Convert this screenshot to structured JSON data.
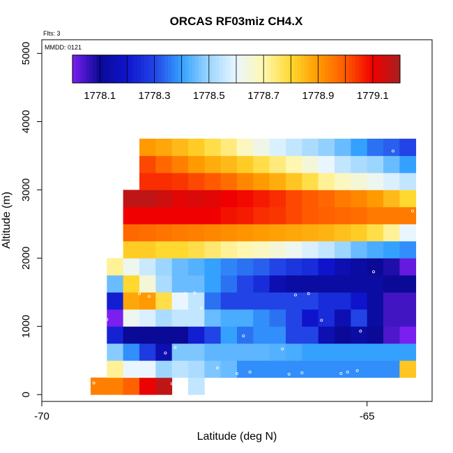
{
  "chart_data": {
    "type": "heatmap",
    "title": "ORCAS RF03miz CH4.X",
    "annotations": {
      "flights": "Flts: 3",
      "date": "MMDD: 0121"
    },
    "xlabel": "Latitude (deg N)",
    "ylabel": "Altitude (m)",
    "xlim": [
      -70,
      -64
    ],
    "ylim": [
      -100,
      5200
    ],
    "x_ticks": [
      -70,
      -65
    ],
    "y_ticks": [
      0,
      1000,
      2000,
      3000,
      4000,
      5000
    ],
    "colorbar": {
      "range": [
        1778.0,
        1779.2
      ],
      "tick_values": [
        1778.1,
        1778.3,
        1778.5,
        1778.7,
        1778.9,
        1779.1
      ],
      "tick_labels": [
        "1778.1",
        "1778.3",
        "1778.5",
        "1778.7",
        "1778.9",
        "1779.1"
      ],
      "palette": [
        "#7a1ff0",
        "#0a0a96",
        "#0f14cc",
        "#2244e6",
        "#35a1ff",
        "#9cd6ff",
        "#e9f6ff",
        "#fff7b0",
        "#ffd830",
        "#ff9a00",
        "#ff5a00",
        "#f00000",
        "#a82020"
      ]
    },
    "cell_lat_width": 0.25,
    "cell_alt_height": 250,
    "rows": [
      {
        "alt_bottom": 0,
        "lat_start": -69.25,
        "values": [
          1778.94,
          1778.94,
          1778.99,
          1779.11,
          1779.17,
          null,
          1778.55
        ]
      },
      {
        "alt_bottom": 250,
        "lat_start": -69.0,
        "values": [
          1778.72,
          1778.6,
          1778.6,
          1778.5,
          1778.54,
          1778.52,
          1778.47,
          1778.45,
          1778.38,
          1778.38,
          1778.38,
          1778.38,
          1778.38,
          1778.38,
          1778.38,
          1778.38,
          1778.38,
          1778.38,
          1778.83
        ]
      },
      {
        "alt_bottom": 500,
        "lat_start": -69.0,
        "values": [
          1778.48,
          1778.38,
          1778.28,
          1778.15,
          1778.47,
          1778.47,
          1778.44,
          1778.44,
          1778.44,
          1778.44,
          1778.43,
          1778.42,
          1778.4,
          1778.4,
          1778.4,
          1778.4,
          1778.4,
          1778.4,
          1778.4
        ]
      },
      {
        "alt_bottom": 750,
        "lat_start": -69.0,
        "values": [
          1778.23,
          1778.1,
          1778.1,
          1778.1,
          1778.1,
          1778.22,
          1778.3,
          1778.4,
          1778.35,
          1778.38,
          1778.38,
          1778.3,
          1778.3,
          1778.15,
          1778.1,
          1778.12,
          1778.1,
          1778.04,
          1778.0
        ]
      },
      {
        "alt_bottom": 1000,
        "lat_start": -69.0,
        "values": [
          1778.0,
          1778.62,
          1778.58,
          1778.52,
          1778.55,
          1778.55,
          1778.45,
          1778.42,
          1778.42,
          1778.38,
          1778.35,
          1778.3,
          1778.2,
          1778.25,
          1778.15,
          1778.3,
          1778.12,
          1778.05,
          1778.05
        ]
      },
      {
        "alt_bottom": 1250,
        "lat_start": -69.0,
        "values": [
          1778.22,
          1778.88,
          1778.9,
          1778.78,
          1778.6,
          1778.55,
          1778.35,
          1778.3,
          1778.3,
          1778.3,
          1778.3,
          1778.3,
          1778.3,
          1778.25,
          1778.25,
          1778.2,
          1778.12,
          1778.05,
          1778.05
        ]
      },
      {
        "alt_bottom": 1500,
        "lat_start": -69.0,
        "values": [
          1778.45,
          1778.8,
          1778.65,
          1778.52,
          1778.45,
          1778.45,
          1778.4,
          1778.35,
          1778.3,
          1778.25,
          1778.15,
          1778.12,
          1778.12,
          1778.12,
          1778.12,
          1778.12,
          1778.12,
          1778.1,
          1778.1
        ]
      },
      {
        "alt_bottom": 1750,
        "lat_start": -69.0,
        "values": [
          1778.72,
          1778.62,
          1778.56,
          1778.5,
          1778.45,
          1778.43,
          1778.4,
          1778.37,
          1778.35,
          1778.33,
          1778.3,
          1778.27,
          1778.25,
          1778.2,
          1778.15,
          1778.12,
          1778.1,
          1778.08,
          1778.02
        ]
      },
      {
        "alt_bottom": 2000,
        "lat_start": -68.75,
        "values": [
          1778.82,
          1778.82,
          1778.8,
          1778.8,
          1778.78,
          1778.75,
          1778.72,
          1778.7,
          1778.68,
          1778.65,
          1778.62,
          1778.58,
          1778.55,
          1778.5,
          1778.45,
          1778.42,
          1778.4,
          1778.38
        ]
      },
      {
        "alt_bottom": 2250,
        "lat_start": -68.75,
        "values": [
          1778.98,
          1778.97,
          1778.96,
          1778.95,
          1778.94,
          1778.93,
          1778.92,
          1778.91,
          1778.9,
          1778.89,
          1778.88,
          1778.87,
          1778.86,
          1778.84,
          1778.82,
          1778.78,
          1778.72,
          1778.6
        ]
      },
      {
        "alt_bottom": 2500,
        "lat_start": -68.75,
        "values": [
          1779.1,
          1779.1,
          1779.1,
          1779.1,
          1779.1,
          1779.1,
          1779.08,
          1779.07,
          1779.05,
          1779.04,
          1779.02,
          1779.0,
          1778.99,
          1778.98,
          1778.97,
          1778.95,
          1778.95,
          1778.95
        ]
      },
      {
        "alt_bottom": 2750,
        "lat_start": -68.75,
        "values": [
          1779.17,
          1779.17,
          1779.15,
          1779.12,
          1779.13,
          1779.12,
          1779.1,
          1779.09,
          1779.07,
          1779.05,
          1779.02,
          1779.0,
          1778.98,
          1778.95,
          1778.93,
          1778.9,
          1778.85,
          1778.8
        ]
      },
      {
        "alt_bottom": 3000,
        "lat_start": -68.5,
        "values": [
          1779.05,
          1779.05,
          1779.04,
          1779.02,
          1779.0,
          1778.97,
          1778.93,
          1778.9,
          1778.87,
          1778.83,
          1778.78,
          1778.72,
          1778.68,
          1778.65,
          1778.62,
          1778.58,
          1778.55
        ]
      },
      {
        "alt_bottom": 3250,
        "lat_start": -68.5,
        "values": [
          1779.02,
          1778.98,
          1778.94,
          1778.9,
          1778.87,
          1778.85,
          1778.82,
          1778.78,
          1778.74,
          1778.7,
          1778.65,
          1778.6,
          1778.55,
          1778.52,
          1778.5,
          1778.45,
          1778.4
        ]
      },
      {
        "alt_bottom": 3500,
        "lat_start": -68.5,
        "values": [
          1778.9,
          1778.88,
          1778.85,
          1778.82,
          1778.78,
          1778.74,
          1778.68,
          1778.63,
          1778.58,
          1778.55,
          1778.52,
          1778.49,
          1778.45,
          1778.4,
          1778.35,
          1778.33,
          1778.3
        ]
      }
    ],
    "sample_points": [
      [
        -68.55,
        3730
      ],
      [
        -64.6,
        3570
      ],
      [
        -68.8,
        2850
      ],
      [
        -64.3,
        2690
      ],
      [
        -64.9,
        1800
      ],
      [
        -68.5,
        1480
      ],
      [
        -68.35,
        1440
      ],
      [
        -67.8,
        1480
      ],
      [
        -67.65,
        1490
      ],
      [
        -67.55,
        1270
      ],
      [
        -66.1,
        1460
      ],
      [
        -65.9,
        1480
      ],
      [
        -69.0,
        1100
      ],
      [
        -65.7,
        1090
      ],
      [
        -65.1,
        930
      ],
      [
        -66.9,
        860
      ],
      [
        -68.1,
        610
      ],
      [
        -67.95,
        690
      ],
      [
        -66.3,
        670
      ],
      [
        -69.3,
        170
      ],
      [
        -69.2,
        170
      ],
      [
        -68.0,
        160
      ],
      [
        -67.3,
        390
      ],
      [
        -67.0,
        310
      ],
      [
        -66.8,
        330
      ],
      [
        -66.2,
        300
      ],
      [
        -66.0,
        320
      ],
      [
        -65.4,
        310
      ],
      [
        -65.3,
        330
      ],
      [
        -65.15,
        350
      ]
    ]
  }
}
